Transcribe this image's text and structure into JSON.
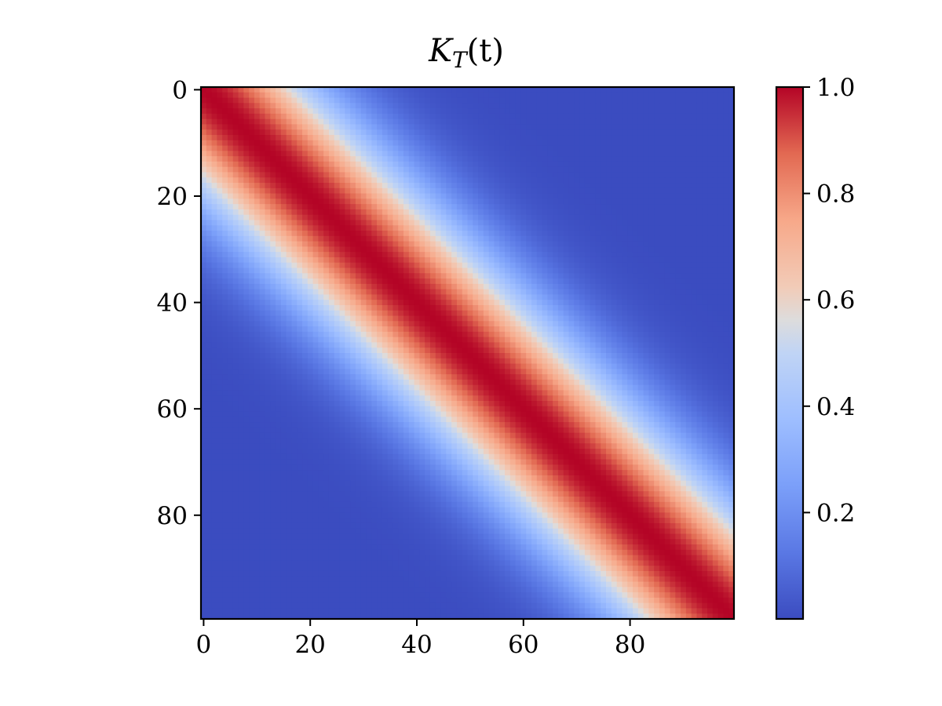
{
  "chart_data": {
    "type": "heatmap",
    "title": "K_T(t)",
    "title_parts": {
      "base": "K",
      "subscript": "T",
      "argument": "(t)"
    },
    "xlabel": "",
    "ylabel": "",
    "rows": 100,
    "cols": 100,
    "xlim": [
      -0.5,
      99.5
    ],
    "ylim": [
      99.5,
      -0.5
    ],
    "y_inverted": true,
    "x_ticks": [
      0,
      20,
      40,
      60,
      80
    ],
    "x_tick_labels": [
      "0",
      "20",
      "40",
      "60",
      "80"
    ],
    "y_ticks": [
      0,
      20,
      40,
      60,
      80
    ],
    "y_tick_labels": [
      "0",
      "20",
      "40",
      "60",
      "80"
    ],
    "kernel": "K[i][j] = exp(-(i - j)^2 / (2 * sigma^2))",
    "sigma": 15,
    "value_range": [
      0.0,
      1.0
    ],
    "colormap": "coolwarm",
    "colormap_stops": [
      {
        "v": 0.0,
        "color": "#3b4cc0"
      },
      {
        "v": 0.125,
        "color": "#5a78e4"
      },
      {
        "v": 0.25,
        "color": "#7b9ff9"
      },
      {
        "v": 0.375,
        "color": "#9ebeff"
      },
      {
        "v": 0.5,
        "color": "#c0d4f5"
      },
      {
        "v": 0.5625,
        "color": "#dddcdc"
      },
      {
        "v": 0.625,
        "color": "#f2cbb7"
      },
      {
        "v": 0.75,
        "color": "#f7a889"
      },
      {
        "v": 0.875,
        "color": "#e26952"
      },
      {
        "v": 1.0,
        "color": "#b40426"
      }
    ],
    "colorbar": {
      "ticks": [
        0.2,
        0.4,
        0.6,
        0.8,
        1.0
      ],
      "tick_labels": [
        "0.2",
        "0.4",
        "0.6",
        "0.8",
        "1.0"
      ],
      "placement": "right"
    }
  }
}
